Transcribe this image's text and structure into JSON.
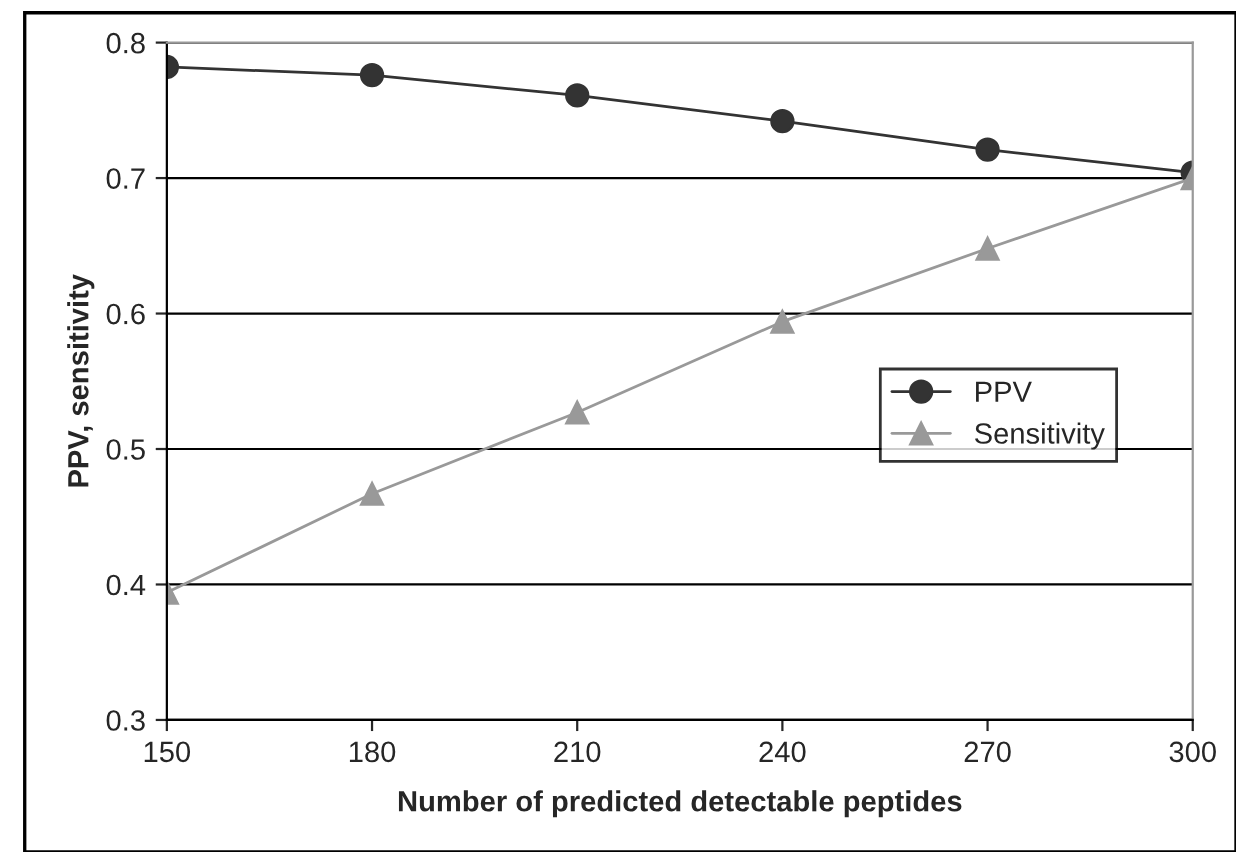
{
  "chart_data": {
    "type": "line",
    "xlabel": "Number of predicted detectable peptides",
    "ylabel": "PPV, sensitivity",
    "x": [
      150,
      180,
      210,
      240,
      270,
      300
    ],
    "series": [
      {
        "name": "PPV",
        "color": "#333333",
        "marker": "circle",
        "values": [
          0.782,
          0.776,
          0.761,
          0.742,
          0.721,
          0.704
        ]
      },
      {
        "name": "Sensitivity",
        "color": "#999999",
        "marker": "triangle",
        "values": [
          0.394,
          0.467,
          0.527,
          0.594,
          0.648,
          0.7
        ]
      }
    ],
    "xlim": [
      150,
      300
    ],
    "xticks": [
      150,
      180,
      210,
      240,
      270,
      300
    ],
    "ylim": [
      0.3,
      0.8
    ],
    "yticks": [
      0.3,
      0.4,
      0.5,
      0.6,
      0.7,
      0.8
    ],
    "grid": "y",
    "legend": "right",
    "line_style": "solid"
  }
}
